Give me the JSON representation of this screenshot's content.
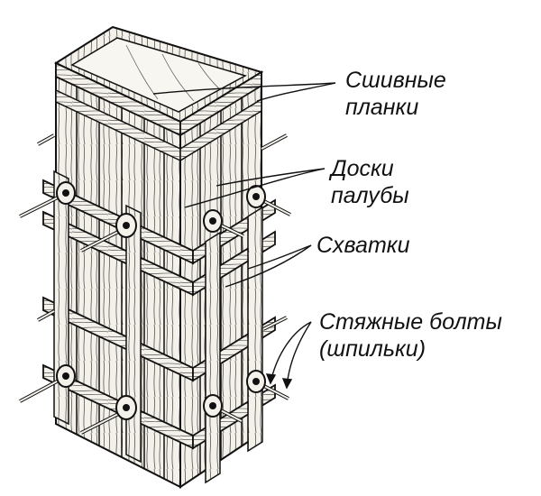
{
  "labels": {
    "stitch_planks": [
      "Сшивные",
      "планки"
    ],
    "form_boards": [
      "Доски",
      "палубы"
    ],
    "clamps": [
      "Схватки"
    ],
    "tie_bolts": [
      "Стяжные болты",
      "(шпильки)"
    ]
  },
  "colors": {
    "ink": "#111111",
    "wood": "#f4f1ea",
    "background": "#ffffff"
  }
}
